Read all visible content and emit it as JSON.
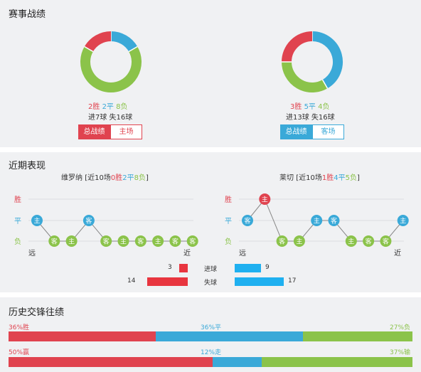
{
  "colors": {
    "win": "#e0434f",
    "draw": "#3aa9d8",
    "loss": "#8bc34a",
    "panel": "#f0f1f3",
    "goals_bar": "#e8353f",
    "goals_bar_right": "#1fb0f0"
  },
  "record": {
    "title": "赛事战绩",
    "left": {
      "wins": 2,
      "draws": 2,
      "losses": 8,
      "win_text": "2胜",
      "draw_text": "2平",
      "loss_text": "8负",
      "goals_text": "进7球 失16球",
      "tab_total": "总战绩",
      "tab_venue": "主场"
    },
    "right": {
      "wins": 3,
      "draws": 5,
      "losses": 4,
      "win_text": "3胜",
      "draw_text": "5平",
      "loss_text": "4负",
      "goals_text": "进13球 失16球",
      "tab_total": "总战绩",
      "tab_venue": "客场"
    }
  },
  "recent": {
    "title": "近期表现",
    "axis": {
      "win": "胜",
      "draw": "平",
      "loss": "负",
      "far": "远",
      "near": "近"
    },
    "left": {
      "team": "维罗纳",
      "summary_pre": "[近10场",
      "w": "0胜",
      "d": "2平",
      "l": "8负",
      "summary_post": "]",
      "matches": [
        {
          "result": "D",
          "venue": "主"
        },
        {
          "result": "L",
          "venue": "客"
        },
        {
          "result": "L",
          "venue": "主"
        },
        {
          "result": "D",
          "venue": "客"
        },
        {
          "result": "L",
          "venue": "客"
        },
        {
          "result": "L",
          "venue": "主"
        },
        {
          "result": "L",
          "venue": "客"
        },
        {
          "result": "L",
          "venue": "主"
        },
        {
          "result": "L",
          "venue": "客"
        },
        {
          "result": "L",
          "venue": "客"
        }
      ]
    },
    "right": {
      "team": "莱切",
      "summary_pre": "[近10场",
      "w": "1胜",
      "d": "4平",
      "l": "5负",
      "summary_post": "]",
      "matches": [
        {
          "result": "D",
          "venue": "客"
        },
        {
          "result": "W",
          "venue": "主"
        },
        {
          "result": "L",
          "venue": "客"
        },
        {
          "result": "L",
          "venue": "主"
        },
        {
          "result": "D",
          "venue": "主"
        },
        {
          "result": "D",
          "venue": "客"
        },
        {
          "result": "L",
          "venue": "主"
        },
        {
          "result": "L",
          "venue": "客"
        },
        {
          "result": "L",
          "venue": "客"
        },
        {
          "result": "D",
          "venue": "主"
        }
      ]
    },
    "goals": {
      "scored_label": "进球",
      "conceded_label": "失球",
      "left_scored": 3,
      "left_conceded": 14,
      "right_scored": 9,
      "right_conceded": 17,
      "max": 17
    }
  },
  "h2h": {
    "title": "历史交锋往绩",
    "rows": [
      {
        "left_text": "36%胜",
        "mid_text": "36%平",
        "right_text": "27%负",
        "left": 36,
        "mid": 36,
        "right": 27,
        "colors": [
          "#e0434f",
          "#3aa9d8",
          "#8bc34a"
        ]
      },
      {
        "left_text": "50%赢",
        "mid_text": "12%走",
        "right_text": "37%输",
        "left": 50,
        "mid": 12,
        "right": 37,
        "colors": [
          "#e0434f",
          "#3aa9d8",
          "#8bc34a"
        ]
      }
    ]
  }
}
